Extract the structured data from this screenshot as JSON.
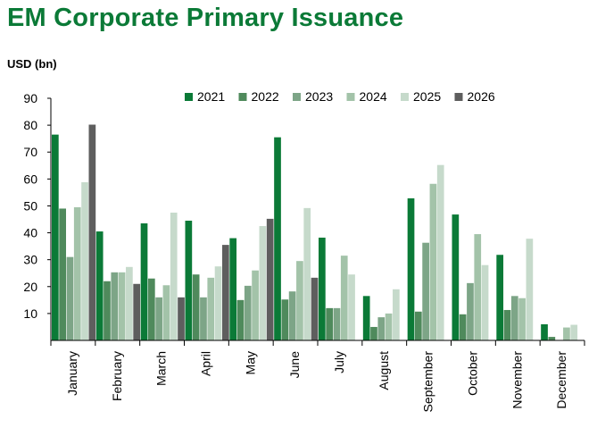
{
  "header": {
    "title": "EM Corporate Primary Issuance",
    "unit_label": "USD (bn)"
  },
  "chart_data": {
    "type": "bar",
    "title": "EM Corporate Primary Issuance",
    "ylabel": "USD (bn)",
    "xlabel": "",
    "ylim": [
      0,
      90
    ],
    "yticks": [
      10,
      20,
      30,
      40,
      50,
      60,
      70,
      80,
      90
    ],
    "grid": false,
    "legend_position": "top",
    "categories": [
      "January",
      "February",
      "March",
      "April",
      "May",
      "June",
      "July",
      "August",
      "September",
      "October",
      "November",
      "December"
    ],
    "series": [
      {
        "name": "2021",
        "color": "#0b7a37",
        "values": [
          76.5,
          40.5,
          43.5,
          44.5,
          38,
          75.5,
          38.2,
          16.5,
          52.8,
          46.8,
          31.8,
          6
        ]
      },
      {
        "name": "2022",
        "color": "#4f8a5c",
        "values": [
          49,
          22,
          23,
          24.5,
          15,
          15.2,
          12,
          5,
          10.7,
          9.7,
          11.3,
          1.3
        ]
      },
      {
        "name": "2023",
        "color": "#7da587",
        "values": [
          31,
          25.3,
          16,
          16,
          20.3,
          18.2,
          12,
          8.6,
          36.3,
          21.3,
          16.5,
          0
        ]
      },
      {
        "name": "2024",
        "color": "#a3c3a9",
        "values": [
          49.5,
          25.3,
          20.5,
          23.3,
          26,
          29.5,
          31.5,
          10,
          58.2,
          39.5,
          15.7,
          4.8
        ]
      },
      {
        "name": "2025",
        "color": "#c6dacb",
        "values": [
          58.8,
          27.3,
          47.5,
          27.5,
          42.5,
          49.2,
          24.5,
          19,
          65.2,
          28,
          37.8,
          5.8
        ]
      },
      {
        "name": "2026",
        "color": "#5e5e5e",
        "values": [
          80.2,
          21,
          16,
          35.5,
          45.2,
          23.3,
          null,
          null,
          null,
          null,
          null,
          null
        ]
      }
    ]
  }
}
